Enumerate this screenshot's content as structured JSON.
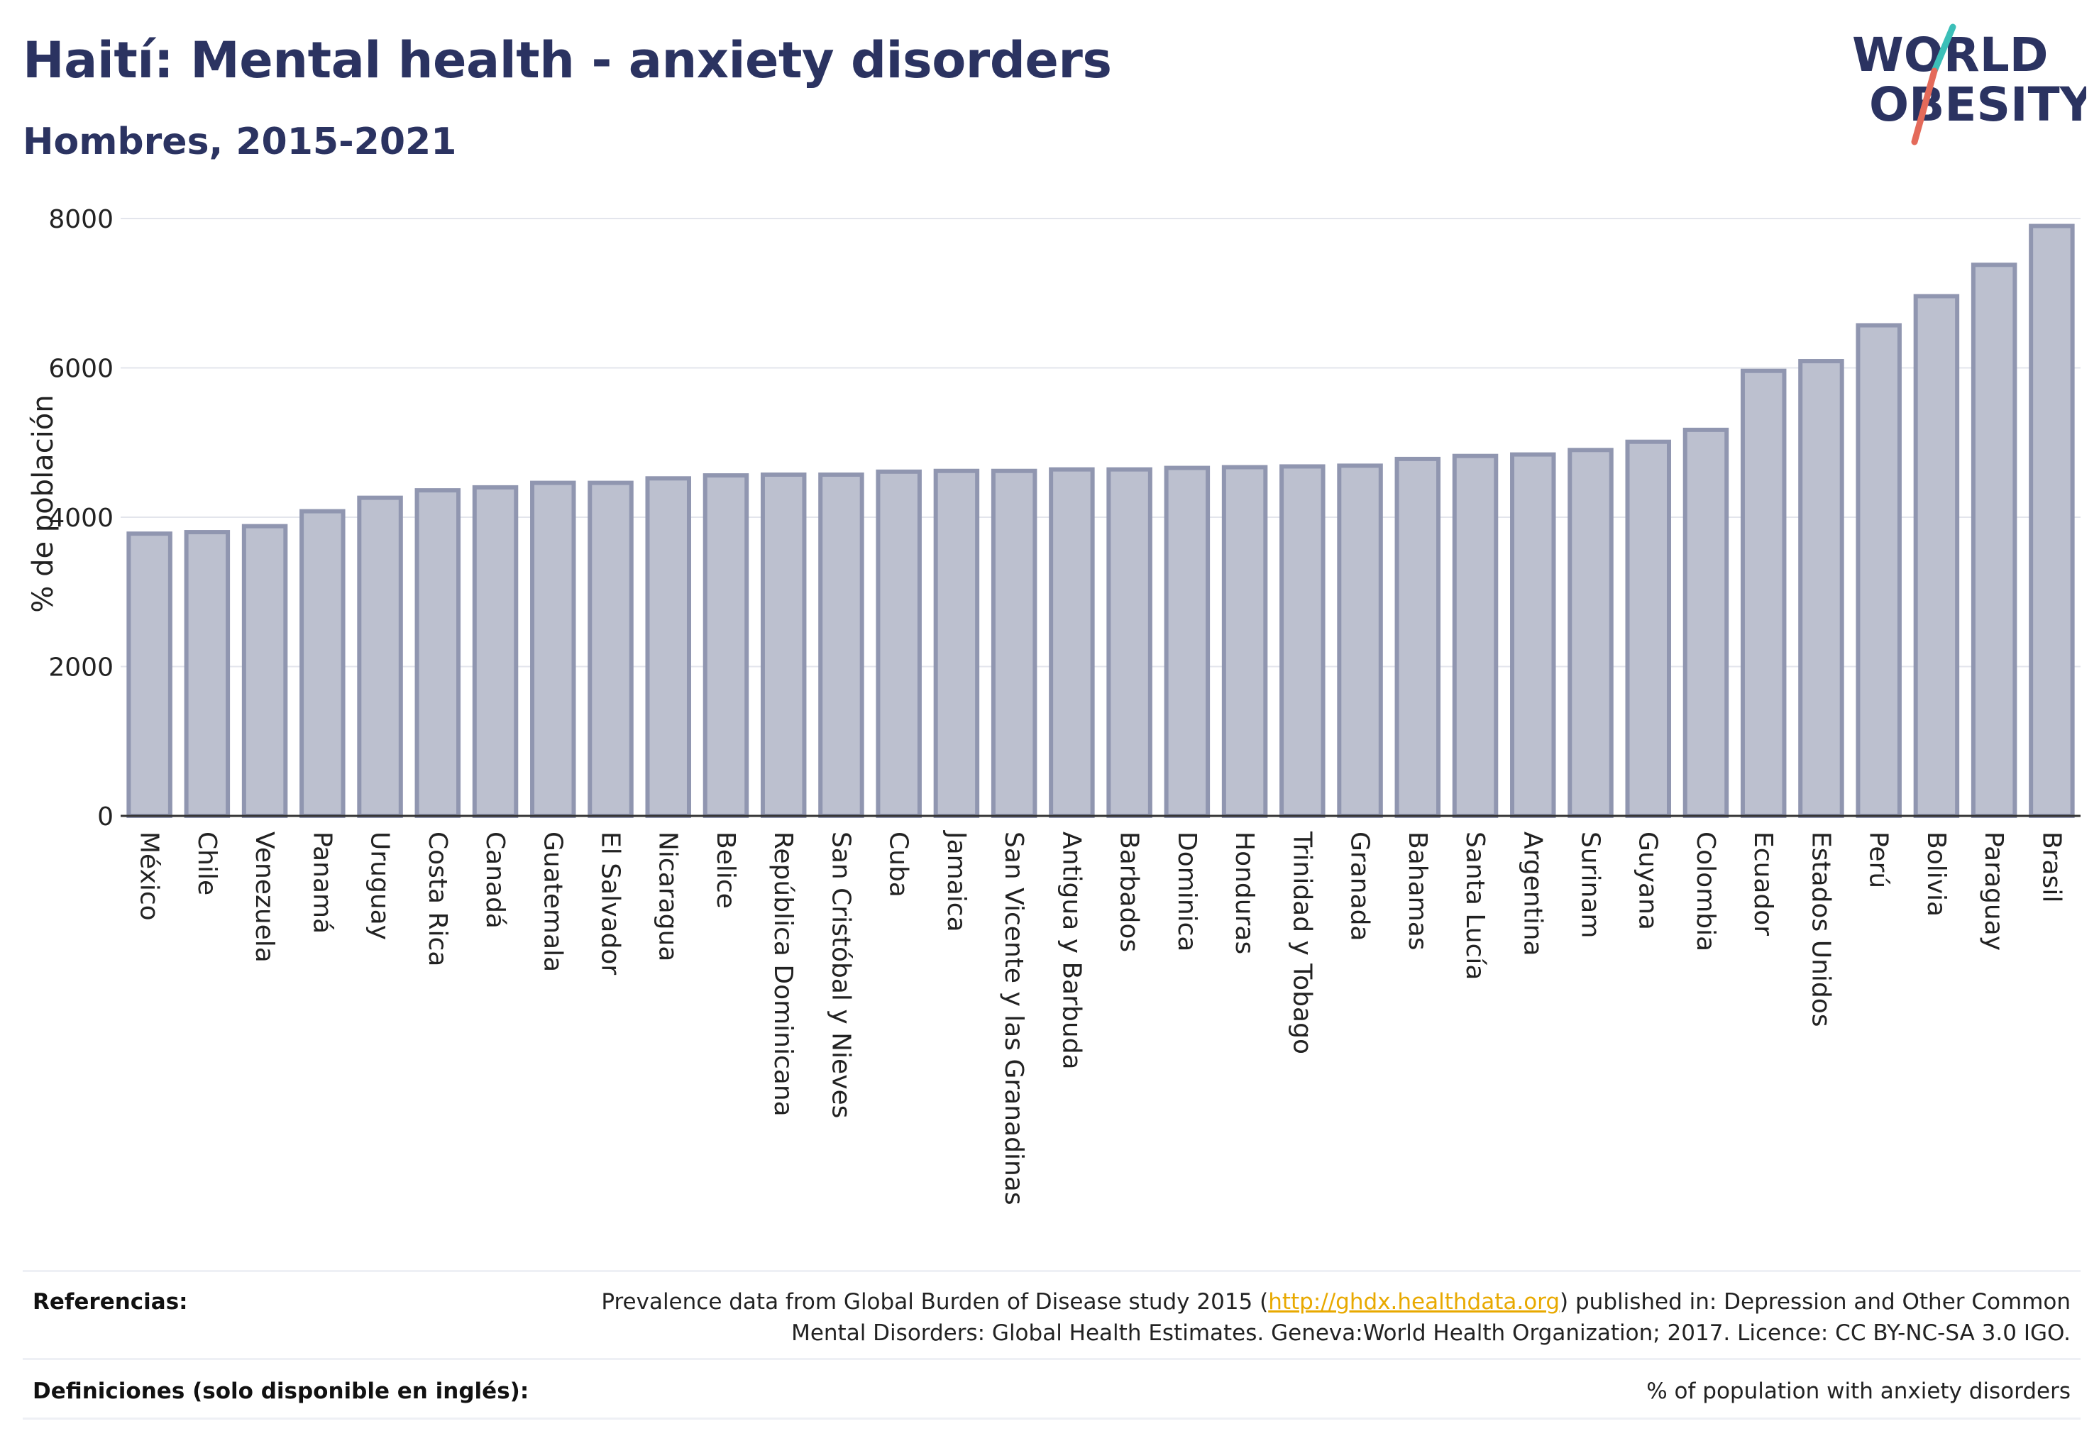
{
  "header": {
    "title": "Haití: Mental health - anxiety disorders",
    "subtitle": "Hombres, 2015-2021"
  },
  "logo": {
    "line1": "WORLD",
    "line2": "OBESITY",
    "colors": {
      "text": "#2b3361",
      "slash_teal": "#3bbfb8",
      "slash_red": "#e46a5a"
    }
  },
  "chart_data": {
    "type": "bar",
    "ylabel": "% de población",
    "xlabel": "",
    "ylim": [
      0,
      8000
    ],
    "yticks": [
      0,
      2000,
      4000,
      6000,
      8000
    ],
    "grid": true,
    "bar_fill": "#bcc0cf",
    "bar_stroke": "#9096b0",
    "categories": [
      "México",
      "Chile",
      "Venezuela",
      "Panamá",
      "Uruguay",
      "Costa Rica",
      "Canadá",
      "Guatemala",
      "El Salvador",
      "Nicaragua",
      "Belice",
      "República Dominicana",
      "San Cristóbal y Nieves",
      "Cuba",
      "Jamaica",
      "San Vicente y las Granadinas",
      "Antigua y Barbuda",
      "Barbados",
      "Dominica",
      "Honduras",
      "Trinidad y Tobago",
      "Granada",
      "Bahamas",
      "Santa Lucía",
      "Argentina",
      "Surinam",
      "Guyana",
      "Colombia",
      "Ecuador",
      "Estados Unidos",
      "Perú",
      "Bolivia",
      "Paraguay",
      "Brasil"
    ],
    "values": [
      3780,
      3800,
      3880,
      4080,
      4260,
      4360,
      4400,
      4460,
      4460,
      4520,
      4560,
      4570,
      4570,
      4610,
      4620,
      4620,
      4640,
      4640,
      4660,
      4670,
      4680,
      4690,
      4780,
      4820,
      4840,
      4900,
      5010,
      5170,
      5960,
      6090,
      6570,
      6960,
      7380,
      7900
    ]
  },
  "footer": {
    "references_label": "Referencias:",
    "references_text_before": "Prevalence data from Global Burden of Disease study 2015 (",
    "references_link": "http://ghdx.healthdata.org",
    "references_text_after": ") published in: Depression and Other Common",
    "references_text_line2": "Mental Disorders: Global Health Estimates. Geneva:World Health Organization; 2017. Licence: CC BY-NC-SA 3.0 IGO.",
    "definitions_label": "Definiciones (solo disponible en inglés):",
    "definitions_text": "% of population with anxiety disorders"
  }
}
